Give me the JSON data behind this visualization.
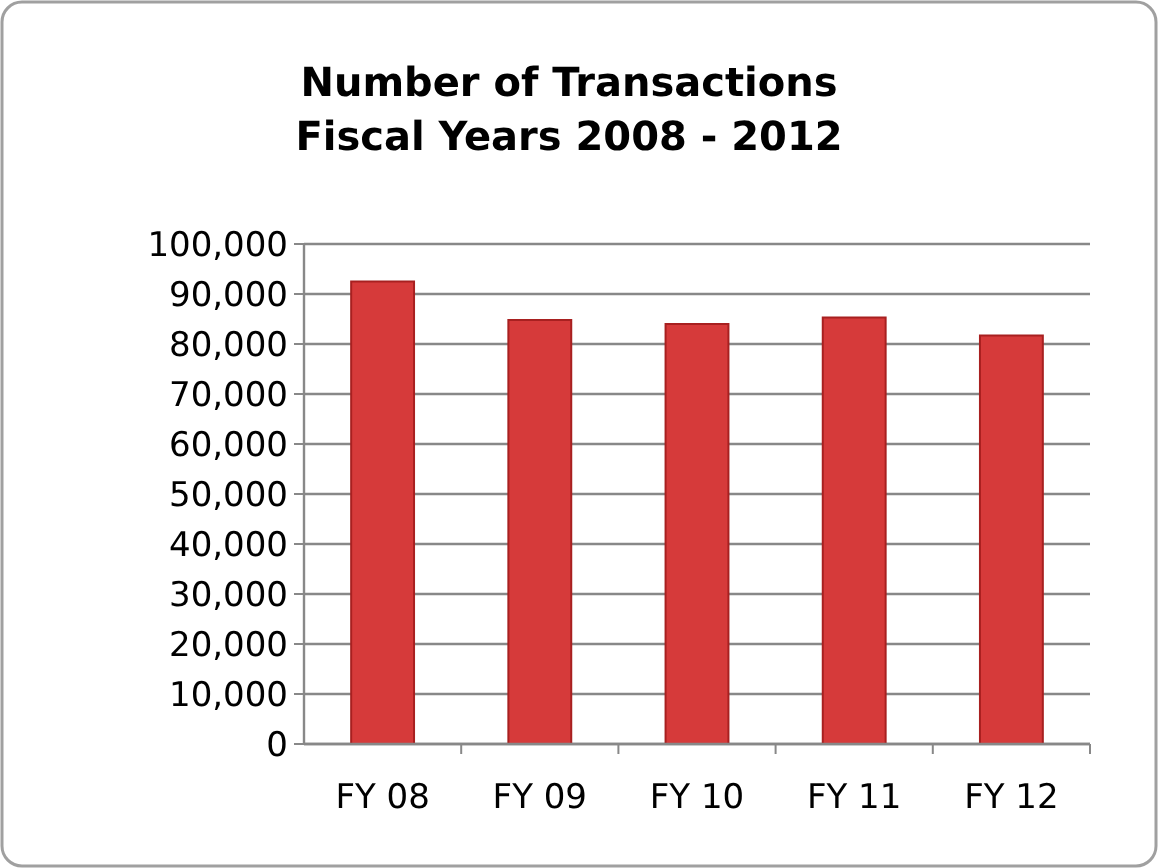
{
  "chart_data": {
    "type": "bar",
    "title": "Number of Transactions\nFiscal Years 2008 - 2012",
    "categories": [
      "FY 08",
      "FY 09",
      "FY 10",
      "FY 11",
      "FY 12"
    ],
    "values": [
      92500,
      84800,
      84000,
      85300,
      81700
    ],
    "color": "#d63a3a",
    "ylim": [
      0,
      100000
    ],
    "yticks": [
      {
        "value": 0,
        "label": "0"
      },
      {
        "value": 10000,
        "label": "10,000"
      },
      {
        "value": 20000,
        "label": "20,000"
      },
      {
        "value": 30000,
        "label": "30,000"
      },
      {
        "value": 40000,
        "label": "40,000"
      },
      {
        "value": 50000,
        "label": "50,000"
      },
      {
        "value": 60000,
        "label": "60,000"
      },
      {
        "value": 70000,
        "label": "70,000"
      },
      {
        "value": 80000,
        "label": "80,000"
      },
      {
        "value": 90000,
        "label": "90,000"
      },
      {
        "value": 100000,
        "label": "100,000"
      }
    ],
    "grid": true
  }
}
